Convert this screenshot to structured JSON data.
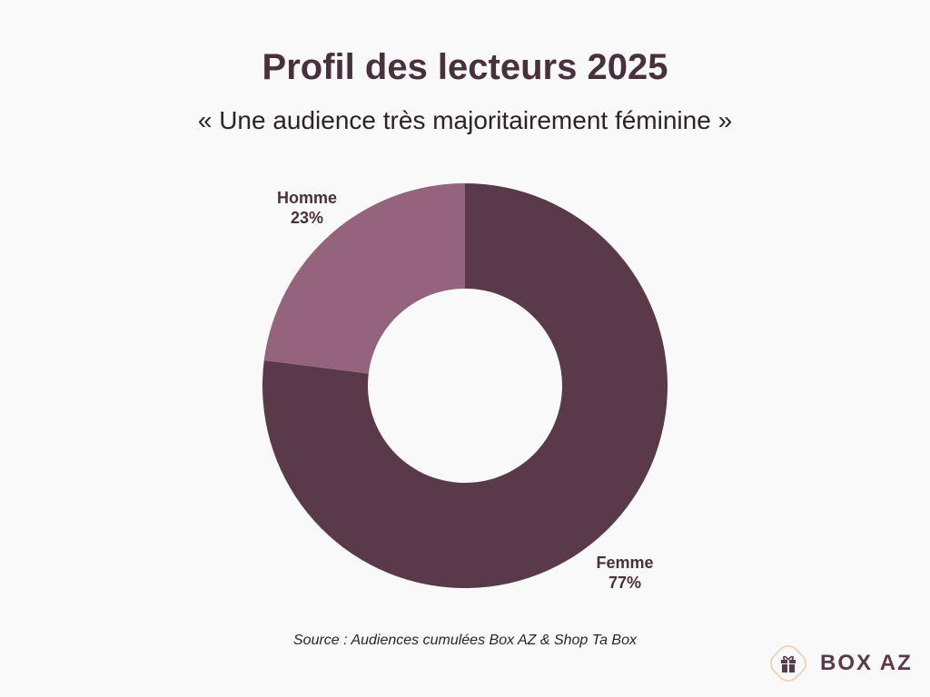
{
  "chart_data": {
    "type": "pie",
    "donut": true,
    "title": "Profil des lecteurs 2025",
    "subtitle": "« Une audience très majoritairement féminine »",
    "slices": [
      {
        "label": "Femme",
        "value": 77,
        "value_label": "77%",
        "color": "#5a3a4a"
      },
      {
        "label": "Homme",
        "value": 23,
        "value_label": "23%",
        "color": "#94647c"
      }
    ],
    "start_angle": "top",
    "direction": "clockwise",
    "source": "Source : Audiences cumulées Box AZ & Shop Ta Box"
  },
  "logo": {
    "text": "BOX AZ",
    "icon": "gift-icon",
    "accent": "#f7c9a8"
  }
}
